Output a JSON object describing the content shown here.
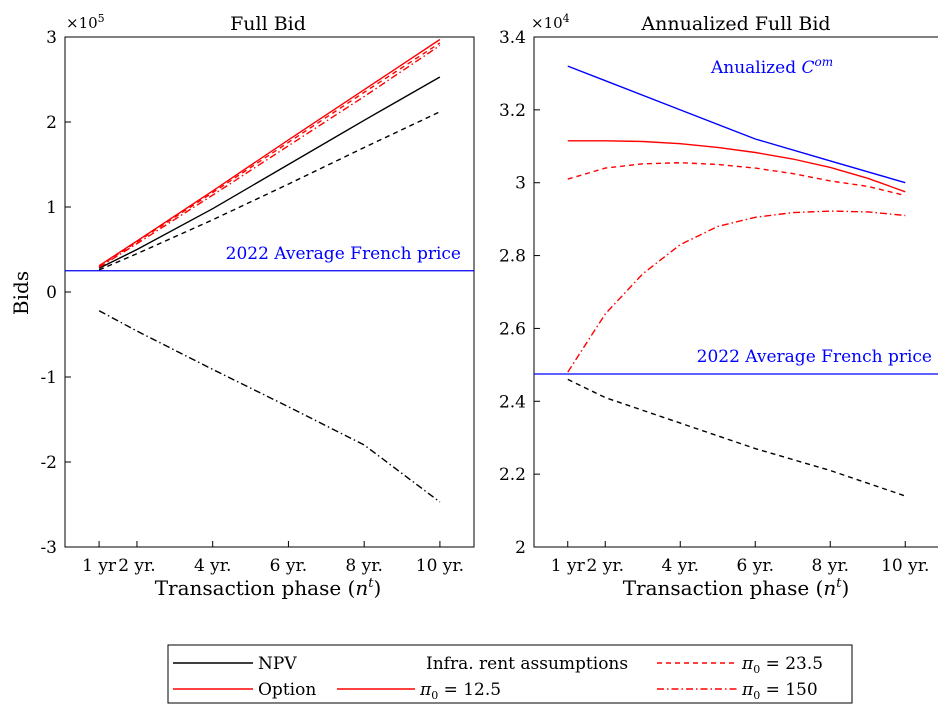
{
  "chart_data": [
    {
      "type": "line",
      "title": "Full Bid",
      "xlabel_main": "Transaction phase (",
      "xlabel_var": "n",
      "xlabel_sup": "t",
      "xlabel_close": ")",
      "ylabel": "Bids",
      "y_multiplier_base": "×10",
      "y_multiplier_exp": "5",
      "xlim": [
        0.1,
        10.9
      ],
      "ylim": [
        -3,
        3
      ],
      "yticks": [
        -3,
        -2,
        -1,
        0,
        1,
        2,
        3
      ],
      "ytick_labels": [
        "-3",
        "-2",
        "-1",
        "0",
        "1",
        "2",
        "3"
      ],
      "xticks": [
        1,
        2,
        4,
        6,
        8,
        10
      ],
      "xtick_labels": [
        "1 yr",
        "2 yr.",
        "4 yr.",
        "6 yr.",
        "8 yr.",
        "10 yr."
      ],
      "annotation": "2022 Average French price",
      "reference_y": 0.25,
      "reference_color": "#0000ff",
      "series": [
        {
          "style": "npv",
          "color": "#000000",
          "dash": "none",
          "x": [
            1,
            2,
            4,
            6,
            8,
            10
          ],
          "y": [
            0.28,
            0.5,
            0.98,
            1.5,
            2.02,
            2.53
          ]
        },
        {
          "style": "npv",
          "color": "#000000",
          "dash": "5,4",
          "x": [
            1,
            2,
            4,
            6,
            8,
            10
          ],
          "y": [
            0.26,
            0.45,
            0.85,
            1.27,
            1.7,
            2.12
          ]
        },
        {
          "style": "npv",
          "color": "#000000",
          "dash": "7,3,1.5,3",
          "x": [
            1,
            2,
            4,
            6,
            8,
            10
          ],
          "y": [
            -0.22,
            -0.46,
            -0.91,
            -1.35,
            -1.8,
            -2.47
          ]
        },
        {
          "style": "option",
          "color": "#ff0000",
          "dash": "none",
          "x": [
            1,
            2,
            4,
            6,
            8,
            10
          ],
          "y": [
            0.31,
            0.6,
            1.19,
            1.79,
            2.38,
            2.97
          ]
        },
        {
          "style": "option",
          "color": "#ff0000",
          "dash": "5,4",
          "x": [
            1,
            2,
            4,
            6,
            8,
            10
          ],
          "y": [
            0.3,
            0.59,
            1.17,
            1.76,
            2.35,
            2.93
          ]
        },
        {
          "style": "option",
          "color": "#ff0000",
          "dash": "7,3,1.5,3",
          "x": [
            1,
            2,
            4,
            6,
            8,
            10
          ],
          "y": [
            0.29,
            0.57,
            1.14,
            1.72,
            2.3,
            2.9
          ]
        }
      ]
    },
    {
      "type": "line",
      "title": "Annualized Full Bid",
      "xlabel_main": "Transaction phase (",
      "xlabel_var": "n",
      "xlabel_sup": "t",
      "xlabel_close": ")",
      "ylabel": "",
      "y_multiplier_base": "×10",
      "y_multiplier_exp": "4",
      "xlim": [
        0.1,
        10.9
      ],
      "ylim": [
        2.0,
        3.4
      ],
      "yticks": [
        2.0,
        2.2,
        2.4,
        2.6,
        2.8,
        3.0,
        3.2,
        3.4
      ],
      "ytick_labels": [
        "2",
        "2.2",
        "2.4",
        "2.6",
        "2.8",
        "3",
        "3.2",
        "3.4"
      ],
      "xticks": [
        1,
        2,
        4,
        6,
        8,
        10
      ],
      "xtick_labels": [
        "1 yr",
        "2 yr.",
        "4 yr.",
        "6 yr.",
        "8 yr.",
        "10 yr."
      ],
      "annotation": "2022 Average French price",
      "reference_y": 2.475,
      "reference_color": "#0000ff",
      "com_label_main": "Anualized ",
      "com_label_var": "C",
      "com_label_sup": "om",
      "series": [
        {
          "style": "com",
          "color": "#0000ff",
          "dash": "none",
          "x": [
            1,
            2,
            4,
            6,
            8,
            10
          ],
          "y": [
            3.32,
            3.28,
            3.2,
            3.12,
            3.06,
            3.0
          ]
        },
        {
          "style": "option",
          "color": "#ff0000",
          "dash": "none",
          "x": [
            1,
            2,
            3,
            4,
            5,
            6,
            7,
            8,
            9,
            10
          ],
          "y": [
            3.115,
            3.115,
            3.113,
            3.107,
            3.097,
            3.083,
            3.065,
            3.042,
            3.012,
            2.975
          ]
        },
        {
          "style": "option",
          "color": "#ff0000",
          "dash": "5,4",
          "x": [
            1,
            2,
            3,
            4,
            5,
            6,
            7,
            8,
            9,
            10
          ],
          "y": [
            3.01,
            3.04,
            3.052,
            3.055,
            3.05,
            3.04,
            3.025,
            3.005,
            2.99,
            2.965
          ]
        },
        {
          "style": "option",
          "color": "#ff0000",
          "dash": "7,3,1.5,3",
          "x": [
            1,
            2,
            3,
            4,
            5,
            6,
            7,
            8,
            9,
            10
          ],
          "y": [
            2.48,
            2.64,
            2.75,
            2.83,
            2.88,
            2.905,
            2.918,
            2.922,
            2.92,
            2.91
          ]
        },
        {
          "style": "npv",
          "color": "#000000",
          "dash": "5,4",
          "x": [
            1,
            2,
            4,
            6,
            8,
            10
          ],
          "y": [
            2.46,
            2.41,
            2.34,
            2.27,
            2.21,
            2.14
          ]
        }
      ]
    }
  ],
  "legend": {
    "npv_label": "NPV",
    "option_label": "Option",
    "title": "Infra. rent assumptions",
    "pi_var": "π",
    "pi_sub": "0",
    "pi1_value": " = 12.5",
    "pi2_value": " = 23.5",
    "pi3_value": " = 150"
  }
}
